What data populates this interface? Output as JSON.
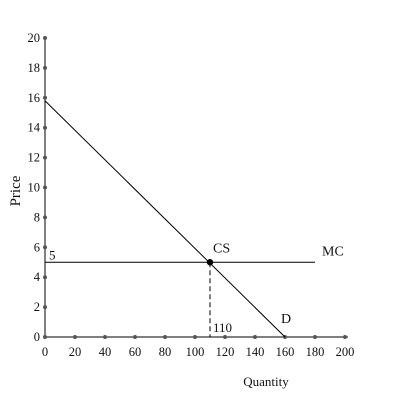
{
  "chart_data": {
    "type": "line",
    "title": "",
    "xlabel": "Quantity",
    "ylabel": "Price",
    "xlim": [
      0,
      200
    ],
    "ylim": [
      0,
      20
    ],
    "x_ticks": [
      0,
      20,
      40,
      60,
      80,
      100,
      120,
      140,
      160,
      180,
      200
    ],
    "y_ticks": [
      0,
      2,
      4,
      6,
      8,
      10,
      12,
      14,
      16,
      18,
      20
    ],
    "grid": false,
    "series": [
      {
        "name": "D",
        "x": [
          0,
          160
        ],
        "y": [
          15.8,
          0
        ]
      },
      {
        "name": "MC",
        "x": [
          0,
          180
        ],
        "y": [
          5,
          5
        ]
      }
    ],
    "points": [
      {
        "label": "CS",
        "x": 110,
        "y": 5
      }
    ],
    "annotations": [
      {
        "text": "5",
        "x": 0,
        "y": 5
      },
      {
        "text": "110",
        "x": 110,
        "y": 0
      }
    ]
  }
}
